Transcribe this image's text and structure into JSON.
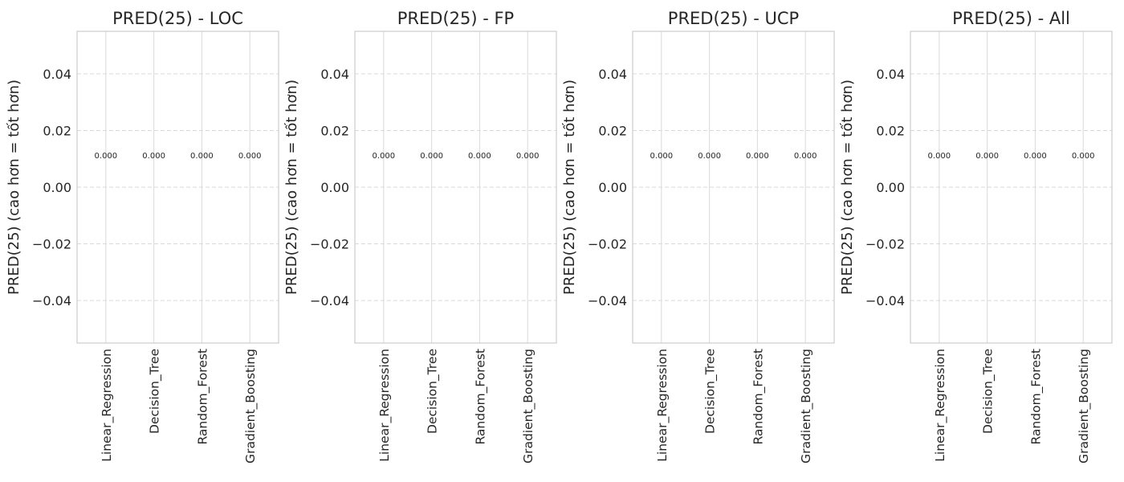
{
  "chart_data": [
    {
      "type": "bar",
      "title": "PRED(25) - LOC",
      "ylabel": "PRED(25) (cao hơn = tốt hơn)",
      "xlabel": "",
      "categories": [
        "Linear_Regression",
        "Decision_Tree",
        "Random_Forest",
        "Gradient_Boosting"
      ],
      "values": [
        0,
        0,
        0,
        0
      ],
      "value_labels": [
        "0.000",
        "0.000",
        "0.000",
        "0.000"
      ],
      "ylim": [
        -0.055,
        0.055
      ],
      "yticks": [
        -0.04,
        -0.02,
        0.0,
        0.02,
        0.04
      ],
      "ytick_labels": [
        "−0.04",
        "−0.02",
        "0.00",
        "0.02",
        "0.04"
      ],
      "grid": true
    },
    {
      "type": "bar",
      "title": "PRED(25) - FP",
      "ylabel": "PRED(25) (cao hơn = tốt hơn)",
      "xlabel": "",
      "categories": [
        "Linear_Regression",
        "Decision_Tree",
        "Random_Forest",
        "Gradient_Boosting"
      ],
      "values": [
        0,
        0,
        0,
        0
      ],
      "value_labels": [
        "0.000",
        "0.000",
        "0.000",
        "0.000"
      ],
      "ylim": [
        -0.055,
        0.055
      ],
      "yticks": [
        -0.04,
        -0.02,
        0.0,
        0.02,
        0.04
      ],
      "ytick_labels": [
        "−0.04",
        "−0.02",
        "0.00",
        "0.02",
        "0.04"
      ],
      "grid": true
    },
    {
      "type": "bar",
      "title": "PRED(25) - UCP",
      "ylabel": "PRED(25) (cao hơn = tốt hơn)",
      "xlabel": "",
      "categories": [
        "Linear_Regression",
        "Decision_Tree",
        "Random_Forest",
        "Gradient_Boosting"
      ],
      "values": [
        0,
        0,
        0,
        0
      ],
      "value_labels": [
        "0.000",
        "0.000",
        "0.000",
        "0.000"
      ],
      "ylim": [
        -0.055,
        0.055
      ],
      "yticks": [
        -0.04,
        -0.02,
        0.0,
        0.02,
        0.04
      ],
      "ytick_labels": [
        "−0.04",
        "−0.02",
        "0.00",
        "0.02",
        "0.04"
      ],
      "grid": true
    },
    {
      "type": "bar",
      "title": "PRED(25) - All",
      "ylabel": "PRED(25) (cao hơn = tốt hơn)",
      "xlabel": "",
      "categories": [
        "Linear_Regression",
        "Decision_Tree",
        "Random_Forest",
        "Gradient_Boosting"
      ],
      "values": [
        0,
        0,
        0,
        0
      ],
      "value_labels": [
        "0.000",
        "0.000",
        "0.000",
        "0.000"
      ],
      "ylim": [
        -0.055,
        0.055
      ],
      "yticks": [
        -0.04,
        -0.02,
        0.0,
        0.02,
        0.04
      ],
      "ytick_labels": [
        "−0.04",
        "−0.02",
        "0.00",
        "0.02",
        "0.04"
      ],
      "grid": true
    }
  ],
  "style": {
    "axes_edge_color": "#cccccc",
    "grid_color": "#d9d9d9",
    "text_color": "#262626",
    "background": "#ffffff"
  }
}
